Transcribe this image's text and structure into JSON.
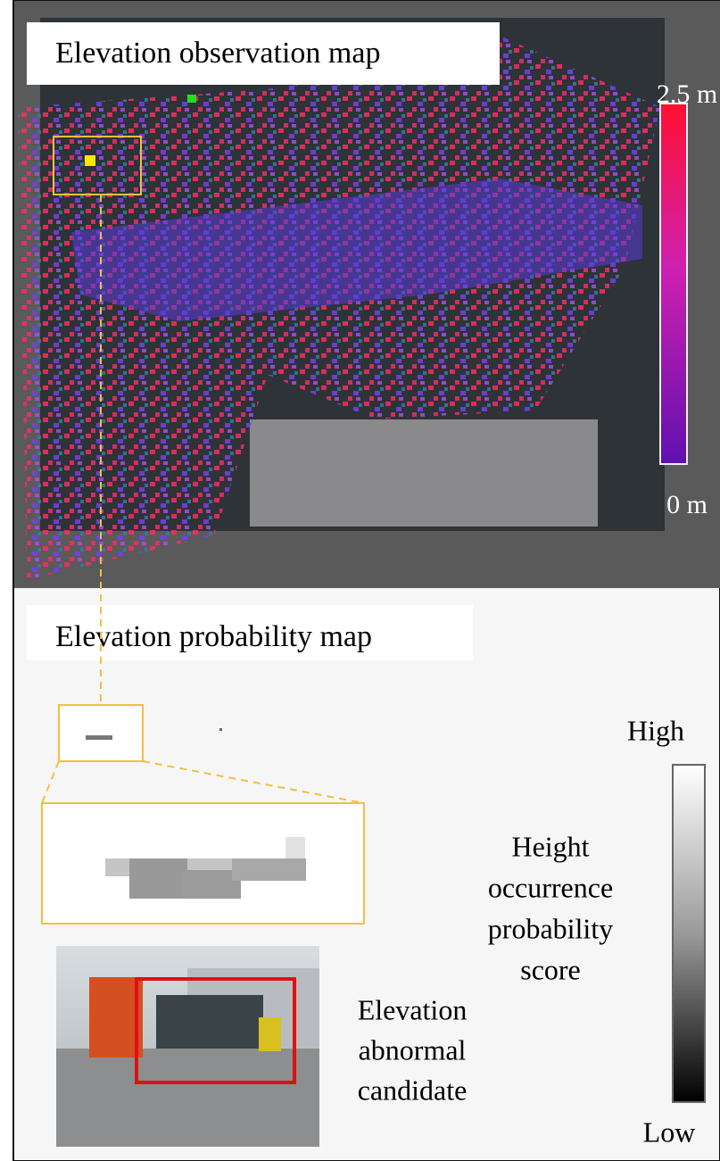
{
  "top_panel": {
    "title": "Elevation observation map",
    "colorbar": {
      "max_label": "2.5 m",
      "min_label": "0 m"
    }
  },
  "bottom_panel": {
    "title": "Elevation probability map",
    "colorbar": {
      "max_label": "High",
      "min_label": "Low",
      "caption_lines": [
        "Height",
        "occurrence",
        "probability",
        "score"
      ]
    },
    "photo_caption_lines": [
      "Elevation",
      "abnormal",
      "candidate"
    ]
  }
}
